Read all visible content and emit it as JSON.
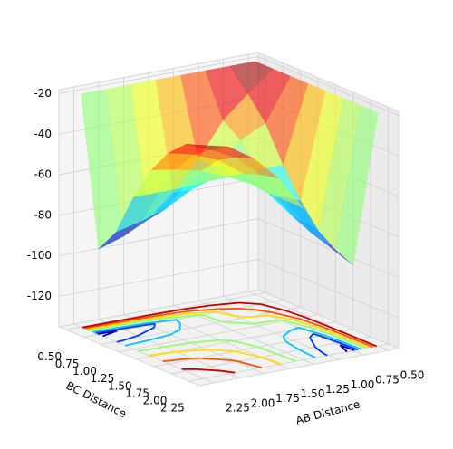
{
  "chart_data": {
    "type": "surface3d",
    "x_label": "AB Distance",
    "y_label": "BC Distance",
    "x": [
      0.5,
      0.75,
      1.0,
      1.25,
      1.5,
      1.75,
      2.0,
      2.25
    ],
    "y": [
      0.5,
      0.75,
      1.0,
      1.25,
      1.5,
      1.75,
      2.0,
      2.25
    ],
    "z": [
      [
        -20,
        -20,
        -20,
        -20,
        -20,
        -20,
        -20,
        -20
      ],
      [
        -20,
        -30,
        -41,
        -58,
        -72,
        -83,
        -89,
        -93
      ],
      [
        -20,
        -41,
        -47,
        -58,
        -67,
        -74,
        -78,
        -81
      ],
      [
        -20,
        -58,
        -58,
        -59,
        -59,
        -60,
        -60,
        -60
      ],
      [
        -20,
        -72,
        -67,
        -59,
        -53,
        -48,
        -45,
        -43
      ],
      [
        -20,
        -83,
        -74,
        -60,
        -48,
        -39,
        -34,
        -31
      ],
      [
        -20,
        -89,
        -78,
        -60,
        -45,
        -34,
        -28,
        -23
      ],
      [
        -20,
        -93,
        -81,
        -60,
        -43,
        -31,
        -23,
        -20
      ]
    ],
    "xlim": [
      0.4,
      2.4
    ],
    "ylim": [
      0.4,
      2.4
    ],
    "zlim": [
      -135,
      -18
    ],
    "xticks": [
      {
        "value": 0.5,
        "label": "0.50"
      },
      0.75,
      {
        "value": 1.0,
        "label": "1.00"
      },
      1.25,
      {
        "value": 1.5,
        "label": "1.50"
      },
      1.75,
      {
        "value": 2.0,
        "label": "2.00"
      },
      2.25
    ],
    "yticks": [
      {
        "value": 0.5,
        "label": "0.50"
      },
      0.75,
      {
        "value": 1.0,
        "label": "1.00"
      },
      1.25,
      {
        "value": 1.5,
        "label": "1.50"
      },
      1.75,
      {
        "value": 2.0,
        "label": "2.00"
      },
      2.25
    ],
    "zticks": [
      -120,
      -100,
      -80,
      -60,
      -40,
      -20
    ],
    "colormap": "jet",
    "surface_alpha": 0.6,
    "contour_levels": [
      -90,
      -80,
      -70,
      -55,
      -45,
      -35,
      -25
    ],
    "grid": true
  }
}
